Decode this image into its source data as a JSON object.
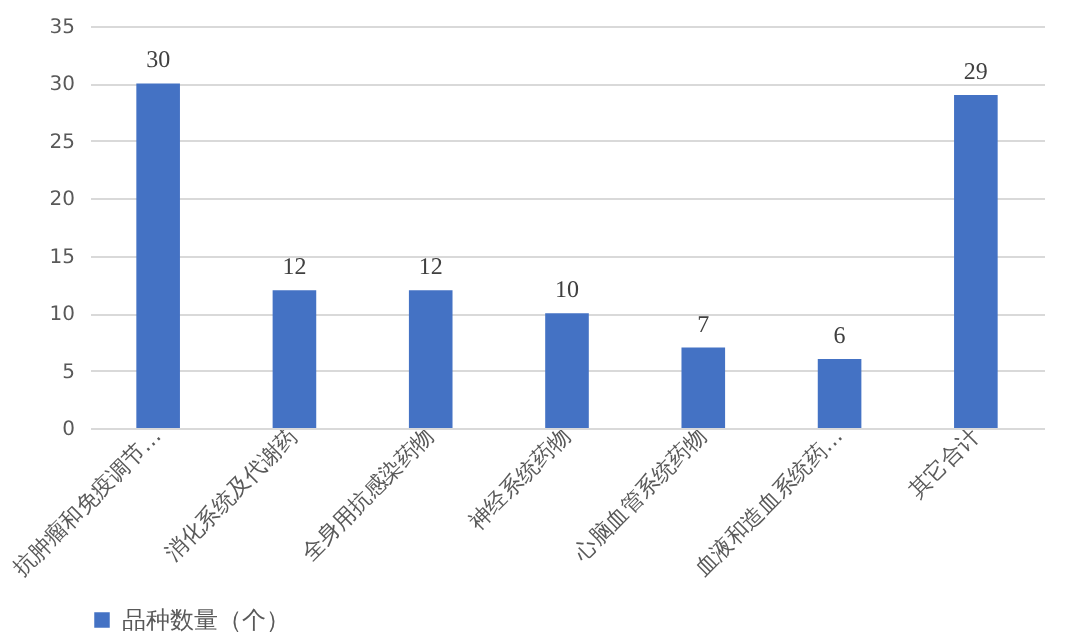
{
  "chart_data": {
    "type": "bar",
    "categories": [
      "抗肿瘤和免疫调节…",
      "消化系统及代谢药",
      "全身用抗感染药物",
      "神经系统药物",
      "心脑血管系统药物",
      "血液和造血系统药…",
      "其它合计"
    ],
    "series": [
      {
        "name": "品种数量（个）",
        "color": "#4472c4",
        "values": [
          30,
          12,
          12,
          10,
          7,
          6,
          29
        ]
      }
    ],
    "ylim": [
      0,
      35
    ],
    "yticks": [
      0,
      5,
      10,
      15,
      20,
      25,
      30,
      35
    ],
    "grid": "y",
    "legend": "bottom",
    "data_labels": true
  }
}
